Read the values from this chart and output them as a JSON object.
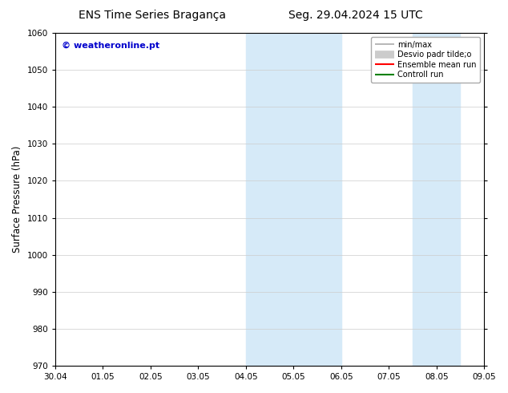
{
  "title_left": "ENS Time Series Bragança",
  "title_right": "Seg. 29.04.2024 15 UTC",
  "ylabel": "Surface Pressure (hPa)",
  "xlabel_ticks": [
    "30.04",
    "01.05",
    "02.05",
    "03.05",
    "04.05",
    "05.05",
    "06.05",
    "07.05",
    "08.05",
    "09.05"
  ],
  "ylim": [
    970,
    1060
  ],
  "yticks": [
    970,
    980,
    990,
    1000,
    1010,
    1020,
    1030,
    1040,
    1050,
    1060
  ],
  "xlim": [
    0,
    9
  ],
  "shaded_regions": [
    {
      "xmin": 4.0,
      "xmax": 5.0,
      "color": "#d6eaf8"
    },
    {
      "xmin": 5.0,
      "xmax": 6.0,
      "color": "#d6eaf8"
    },
    {
      "xmin": 7.5,
      "xmax": 8.5,
      "color": "#d6eaf8"
    }
  ],
  "watermark_text": "© weatheronline.pt",
  "watermark_color": "#0000cc",
  "legend_entries": [
    {
      "label": "min/max",
      "color": "#aaaaaa",
      "linewidth": 1.2
    },
    {
      "label": "Desvio padr tilde;o",
      "color": "#cccccc",
      "linewidth": 7
    },
    {
      "label": "Ensemble mean run",
      "color": "#ff0000",
      "linewidth": 1.5
    },
    {
      "label": "Controll run",
      "color": "#008000",
      "linewidth": 1.5
    }
  ],
  "background_color": "#ffffff",
  "grid_color": "#cccccc",
  "title_fontsize": 10,
  "tick_fontsize": 7.5,
  "ylabel_fontsize": 8.5,
  "watermark_fontsize": 8
}
